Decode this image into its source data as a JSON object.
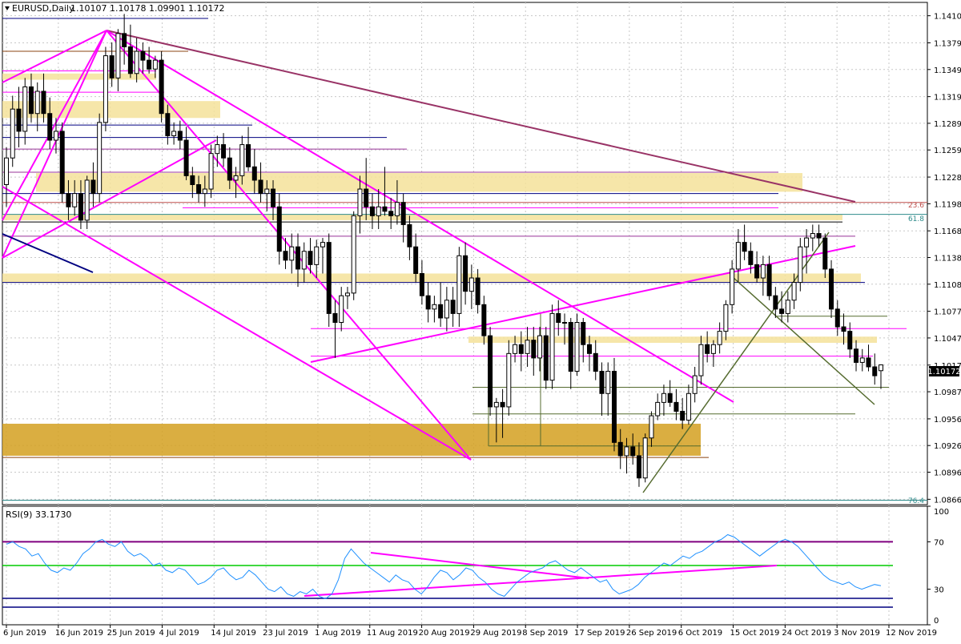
{
  "header": {
    "symbol_label": "EURUSD,Daily",
    "ohlc_text": "1.10107 1.10178 1.09901 1.10172"
  },
  "rsi_panel": {
    "label": "RSI(9) 33.1730",
    "levels": [
      "100",
      "70",
      "30",
      "0"
    ]
  },
  "price_axis": {
    "ticks": [
      "1.14100",
      "1.13795",
      "1.13495",
      "1.13190",
      "1.12890",
      "1.12590",
      "1.12285",
      "1.11985",
      "1.11680",
      "1.11380",
      "1.11080",
      "1.10775",
      "1.10475",
      "1.10170",
      "1.09870",
      "1.09565",
      "1.09265",
      "1.08965",
      "1.08660"
    ],
    "current_price": "1.10172"
  },
  "fib_labels": {
    "f236": "23.6",
    "f618": "61.8",
    "f764": "76.4"
  },
  "date_axis": {
    "labels": [
      "6 Jun 2019",
      "16 Jun 2019",
      "25 Jun 2019",
      "4 Jul 2019",
      "14 Jul 2019",
      "23 Jul 2019",
      "1 Aug 2019",
      "11 Aug 2019",
      "20 Aug 2019",
      "29 Aug 2019",
      "8 Sep 2019",
      "17 Sep 2019",
      "26 Sep 2019",
      "6 Oct 2019",
      "15 Oct 2019",
      "24 Oct 2019",
      "3 Nov 2019",
      "12 Nov 2019"
    ]
  },
  "colors": {
    "bull": "#ffffff",
    "bear": "#000000",
    "magenta": "#ff00ff",
    "purple_trend": "#993366",
    "navy": "#000080",
    "olive": "#556b2f",
    "zone_light": "#f5e29a",
    "zone_dark": "#d4a020",
    "rsi_line": "#1e90ff",
    "rsi_70": "#800080",
    "rsi_50": "#00cc00"
  },
  "chart_data": {
    "type": "candlestick",
    "symbol": "EURUSD",
    "timeframe": "Daily",
    "last": {
      "open": 1.10107,
      "high": 1.10178,
      "low": 1.09901,
      "close": 1.10172
    },
    "ylim": [
      1.086,
      1.1425
    ],
    "rsi": {
      "period": 9,
      "value": 33.173,
      "ylim": [
        0,
        100
      ],
      "levels": [
        70,
        50,
        30
      ]
    },
    "candles": [
      [
        1.122,
        1.1262,
        1.1195,
        1.125
      ],
      [
        1.125,
        1.132,
        1.124,
        1.1305
      ],
      [
        1.1305,
        1.133,
        1.1262,
        1.128
      ],
      [
        1.128,
        1.134,
        1.1265,
        1.133
      ],
      [
        1.133,
        1.1345,
        1.129,
        1.13
      ],
      [
        1.13,
        1.1335,
        1.128,
        1.1325
      ],
      [
        1.1325,
        1.1345,
        1.129,
        1.13
      ],
      [
        1.13,
        1.1318,
        1.126,
        1.127
      ],
      [
        1.127,
        1.1295,
        1.1255,
        1.128
      ],
      [
        1.128,
        1.129,
        1.12,
        1.121
      ],
      [
        1.121,
        1.1225,
        1.118,
        1.1195
      ],
      [
        1.1195,
        1.1225,
        1.1185,
        1.121
      ],
      [
        1.121,
        1.1225,
        1.117,
        1.118
      ],
      [
        1.118,
        1.123,
        1.117,
        1.1225
      ],
      [
        1.1225,
        1.1245,
        1.1195,
        1.121
      ],
      [
        1.121,
        1.13,
        1.12,
        1.129
      ],
      [
        1.129,
        1.1375,
        1.128,
        1.1365
      ],
      [
        1.1365,
        1.138,
        1.133,
        1.134
      ],
      [
        1.134,
        1.1395,
        1.1325,
        1.139
      ],
      [
        1.139,
        1.1412,
        1.1355,
        1.1375
      ],
      [
        1.1375,
        1.14,
        1.134,
        1.1345
      ],
      [
        1.1345,
        1.1385,
        1.1335,
        1.137
      ],
      [
        1.137,
        1.138,
        1.1345,
        1.136
      ],
      [
        1.136,
        1.1375,
        1.1345,
        1.135
      ],
      [
        1.135,
        1.1365,
        1.134,
        1.136
      ],
      [
        1.136,
        1.137,
        1.129,
        1.13
      ],
      [
        1.13,
        1.131,
        1.1265,
        1.1275
      ],
      [
        1.1275,
        1.129,
        1.1265,
        1.128
      ],
      [
        1.128,
        1.1292,
        1.126,
        1.127
      ],
      [
        1.127,
        1.1285,
        1.1225,
        1.123
      ],
      [
        1.123,
        1.124,
        1.1205,
        1.122
      ],
      [
        1.122,
        1.123,
        1.12,
        1.121
      ],
      [
        1.121,
        1.123,
        1.1195,
        1.1215
      ],
      [
        1.1215,
        1.1265,
        1.1205,
        1.1255
      ],
      [
        1.1255,
        1.1275,
        1.124,
        1.1265
      ],
      [
        1.1265,
        1.1278,
        1.124,
        1.125
      ],
      [
        1.125,
        1.1262,
        1.1215,
        1.1225
      ],
      [
        1.1225,
        1.124,
        1.1205,
        1.123
      ],
      [
        1.123,
        1.1275,
        1.122,
        1.1265
      ],
      [
        1.1265,
        1.1285,
        1.1235,
        1.124
      ],
      [
        1.124,
        1.126,
        1.121,
        1.1225
      ],
      [
        1.1225,
        1.1245,
        1.12,
        1.121
      ],
      [
        1.121,
        1.1225,
        1.119,
        1.1215
      ],
      [
        1.1215,
        1.1225,
        1.118,
        1.1195
      ],
      [
        1.1195,
        1.121,
        1.113,
        1.1145
      ],
      [
        1.1145,
        1.116,
        1.1125,
        1.1135
      ],
      [
        1.1135,
        1.1165,
        1.112,
        1.115
      ],
      [
        1.115,
        1.1165,
        1.1105,
        1.1125
      ],
      [
        1.1125,
        1.1155,
        1.111,
        1.1145
      ],
      [
        1.1145,
        1.116,
        1.112,
        1.113
      ],
      [
        1.113,
        1.1158,
        1.1115,
        1.115
      ],
      [
        1.115,
        1.116,
        1.112,
        1.1155
      ],
      [
        1.1155,
        1.1165,
        1.106,
        1.1075
      ],
      [
        1.1075,
        1.109,
        1.1025,
        1.1065
      ],
      [
        1.1065,
        1.1105,
        1.1055,
        1.1095
      ],
      [
        1.1095,
        1.1105,
        1.108,
        1.1098
      ],
      [
        1.1098,
        1.119,
        1.109,
        1.1185
      ],
      [
        1.1185,
        1.123,
        1.1165,
        1.1215
      ],
      [
        1.1215,
        1.125,
        1.118,
        1.1195
      ],
      [
        1.1195,
        1.121,
        1.117,
        1.1185
      ],
      [
        1.1185,
        1.1215,
        1.117,
        1.1195
      ],
      [
        1.1195,
        1.124,
        1.1185,
        1.119
      ],
      [
        1.119,
        1.1205,
        1.117,
        1.1185
      ],
      [
        1.1185,
        1.1225,
        1.1175,
        1.12
      ],
      [
        1.12,
        1.121,
        1.1155,
        1.1175
      ],
      [
        1.1175,
        1.1185,
        1.1135,
        1.115
      ],
      [
        1.115,
        1.1165,
        1.111,
        1.112
      ],
      [
        1.112,
        1.1135,
        1.1085,
        1.1095
      ],
      [
        1.1095,
        1.111,
        1.1065,
        1.108
      ],
      [
        1.108,
        1.1095,
        1.1065,
        1.1085
      ],
      [
        1.1085,
        1.111,
        1.106,
        1.107
      ],
      [
        1.107,
        1.1105,
        1.1055,
        1.109
      ],
      [
        1.109,
        1.1105,
        1.106,
        1.1075
      ],
      [
        1.1075,
        1.115,
        1.106,
        1.114
      ],
      [
        1.114,
        1.1155,
        1.1085,
        1.11
      ],
      [
        1.11,
        1.113,
        1.108,
        1.1115
      ],
      [
        1.1115,
        1.1125,
        1.1075,
        1.1085
      ],
      [
        1.1085,
        1.1095,
        1.104,
        1.105
      ],
      [
        1.105,
        1.106,
        1.096,
        1.097
      ],
      [
        1.097,
        1.098,
        1.093,
        1.0975
      ],
      [
        1.0975,
        1.099,
        1.0935,
        1.097
      ],
      [
        1.097,
        1.1045,
        1.096,
        1.103
      ],
      [
        1.103,
        1.105,
        1.102,
        1.104
      ],
      [
        1.104,
        1.1055,
        1.101,
        1.103
      ],
      [
        1.103,
        1.106,
        1.1015,
        1.1045
      ],
      [
        1.1045,
        1.106,
        1.1005,
        1.1025
      ],
      [
        1.1025,
        1.106,
        1.101,
        1.105
      ],
      [
        1.105,
        1.106,
        1.099,
        1.1
      ],
      [
        1.1,
        1.1085,
        1.099,
        1.1075
      ],
      [
        1.1075,
        1.109,
        1.105,
        1.1065
      ],
      [
        1.1065,
        1.1075,
        1.104,
        1.1065
      ],
      [
        1.1065,
        1.107,
        1.099,
        1.101
      ],
      [
        1.101,
        1.1075,
        1.1005,
        1.1065
      ],
      [
        1.1065,
        1.107,
        1.102,
        1.104
      ],
      [
        1.104,
        1.105,
        1.101,
        1.103
      ],
      [
        1.103,
        1.1045,
        1.1,
        1.101
      ],
      [
        1.101,
        1.102,
        1.096,
        1.0985
      ],
      [
        1.0985,
        1.102,
        1.096,
        1.101
      ],
      [
        1.101,
        1.1025,
        1.092,
        1.093
      ],
      [
        1.093,
        1.0945,
        1.09,
        1.0915
      ],
      [
        1.0915,
        1.0935,
        1.0895,
        1.0925
      ],
      [
        1.0925,
        1.094,
        1.0905,
        1.0915
      ],
      [
        1.0915,
        1.093,
        1.088,
        1.089
      ],
      [
        1.089,
        1.094,
        1.0885,
        1.0935
      ],
      [
        1.0935,
        1.0965,
        1.0925,
        1.096
      ],
      [
        1.096,
        1.0985,
        1.0955,
        1.0975
      ],
      [
        1.0975,
        1.0995,
        1.096,
        1.0985
      ],
      [
        1.0985,
        1.1,
        1.097,
        1.0975
      ],
      [
        1.0975,
        1.099,
        1.0955,
        1.0965
      ],
      [
        1.0965,
        1.098,
        1.0945,
        1.0955
      ],
      [
        1.0955,
        1.0995,
        1.095,
        1.0985
      ],
      [
        1.0985,
        1.1015,
        1.0975,
        1.1005
      ],
      [
        1.1005,
        1.105,
        1.0995,
        1.104
      ],
      [
        1.104,
        1.1055,
        1.102,
        1.103
      ],
      [
        1.103,
        1.1045,
        1.1015,
        1.104
      ],
      [
        1.104,
        1.1065,
        1.103,
        1.1055
      ],
      [
        1.1055,
        1.109,
        1.1045,
        1.1085
      ],
      [
        1.1085,
        1.1135,
        1.1075,
        1.1125
      ],
      [
        1.1125,
        1.117,
        1.111,
        1.1155
      ],
      [
        1.1155,
        1.1175,
        1.1135,
        1.1145
      ],
      [
        1.1145,
        1.1155,
        1.112,
        1.113
      ],
      [
        1.113,
        1.1145,
        1.111,
        1.1115
      ],
      [
        1.1115,
        1.114,
        1.1095,
        1.113
      ],
      [
        1.113,
        1.114,
        1.109,
        1.1095
      ],
      [
        1.1095,
        1.1105,
        1.107,
        1.108
      ],
      [
        1.108,
        1.11,
        1.1065,
        1.1075
      ],
      [
        1.1075,
        1.11,
        1.1065,
        1.109
      ],
      [
        1.109,
        1.112,
        1.108,
        1.111
      ],
      [
        1.111,
        1.116,
        1.11,
        1.115
      ],
      [
        1.115,
        1.117,
        1.112,
        1.116
      ],
      [
        1.116,
        1.1175,
        1.1145,
        1.1165
      ],
      [
        1.1165,
        1.1175,
        1.115,
        1.116
      ],
      [
        1.116,
        1.1165,
        1.1115,
        1.1125
      ],
      [
        1.1125,
        1.1135,
        1.107,
        1.108
      ],
      [
        1.108,
        1.109,
        1.105,
        1.106
      ],
      [
        1.106,
        1.1075,
        1.104,
        1.1055
      ],
      [
        1.1055,
        1.1065,
        1.1025,
        1.1035
      ],
      [
        1.1035,
        1.1045,
        1.101,
        1.102
      ],
      [
        1.102,
        1.1035,
        1.101,
        1.1025
      ],
      [
        1.1025,
        1.104,
        1.101,
        1.1015
      ],
      [
        1.1015,
        1.103,
        1.0995,
        1.1005
      ],
      [
        1.10107,
        1.10178,
        1.09901,
        1.10172
      ]
    ],
    "rsi_values": [
      68,
      70,
      66,
      64,
      58,
      60,
      52,
      46,
      44,
      48,
      46,
      52,
      60,
      64,
      70,
      72,
      68,
      66,
      70,
      62,
      58,
      60,
      56,
      50,
      52,
      46,
      44,
      48,
      46,
      40,
      34,
      36,
      40,
      46,
      48,
      42,
      38,
      40,
      46,
      42,
      36,
      30,
      28,
      32,
      26,
      24,
      28,
      26,
      30,
      24,
      22,
      26,
      38,
      56,
      64,
      58,
      52,
      48,
      44,
      40,
      36,
      42,
      38,
      36,
      30,
      26,
      32,
      40,
      46,
      44,
      38,
      42,
      48,
      46,
      40,
      36,
      30,
      26,
      24,
      30,
      36,
      40,
      44,
      46,
      48,
      52,
      54,
      50,
      46,
      44,
      48,
      44,
      40,
      36,
      38,
      30,
      26,
      28,
      30,
      34,
      40,
      44,
      48,
      52,
      50,
      54,
      58,
      56,
      60,
      62,
      66,
      70,
      72,
      76,
      74,
      70,
      66,
      62,
      58,
      62,
      66,
      70,
      72,
      70,
      66,
      60,
      54,
      48,
      42,
      38,
      36,
      34,
      36,
      32,
      30,
      32,
      34,
      33
    ]
  }
}
